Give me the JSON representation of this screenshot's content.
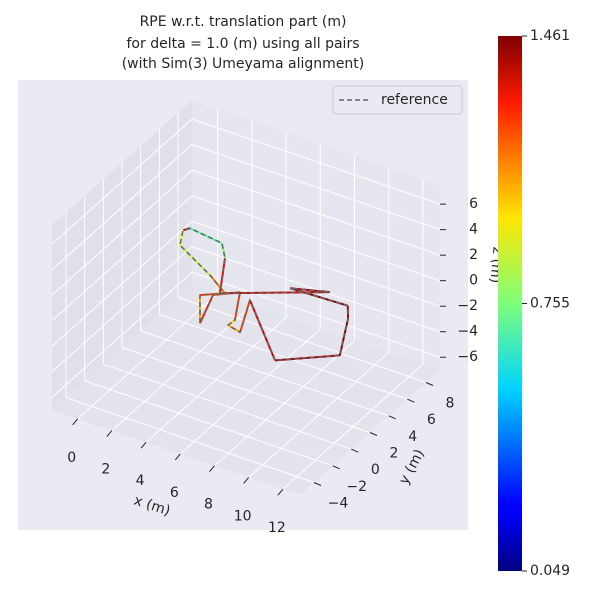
{
  "chart_data": {
    "type": "line3d",
    "title": [
      "RPE w.r.t. translation part (m)",
      "for delta = 1.0 (m) using all pairs",
      "(with Sim(3) Umeyama alignment)"
    ],
    "xlabel": "x (m)",
    "ylabel": "y (m)",
    "zlabel": "z (m)",
    "xlim": [
      -1.5,
      13
    ],
    "ylim": [
      -5.5,
      9.5
    ],
    "zlim": [
      -7,
      7.5
    ],
    "xticks": [
      0,
      2,
      4,
      6,
      8,
      10,
      12
    ],
    "yticks": [
      {
        "value": -4,
        "label": "−4"
      },
      {
        "value": -2,
        "label": "−2"
      },
      0,
      2,
      4,
      6,
      8
    ],
    "zticks": [
      {
        "value": -6,
        "label": "−6"
      },
      {
        "value": -4,
        "label": "−4"
      },
      {
        "value": -2,
        "label": "−2"
      },
      0,
      2,
      4,
      6
    ],
    "grid": true,
    "legend_position": "upper right",
    "series": [
      {
        "name": "reference",
        "color": "#666666",
        "x": [
          1.16,
          0.96,
          1.54,
          4.23,
          5.71,
          4.75,
          6.08,
          5.3,
          6.3,
          7.41,
          7.36,
          8.2,
          7.1,
          9.2,
          11.7,
          10.3,
          9.68,
          8.23,
          10.1,
          5.5,
          4.06,
          3.22,
          1.16
        ],
        "y": [
          4.4,
          4.03,
          2.64,
          0.93,
          -0.19,
          -1.1,
          -3.53,
          -0.71,
          0.35,
          -2.23,
          -2.87,
          -3.12,
          -0.05,
          -1.21,
          1.15,
          4.6,
          5.7,
          2.18,
          3.02,
          -0.34,
          2.85,
          4.06,
          4.4
        ],
        "z": [
          2,
          2,
          2,
          2,
          2,
          2,
          2,
          2,
          2,
          2,
          2,
          2,
          2,
          -1,
          -1,
          -1,
          -1,
          2,
          2,
          2,
          2,
          2,
          2
        ],
        "errors": [
          1.4,
          0.9,
          0.85,
          1.1,
          1.2,
          1.05,
          1.25,
          1.15,
          1.2,
          1.0,
          1.05,
          1.2,
          1.35,
          1.4,
          1.45,
          1.4,
          1.45,
          1.4,
          1.35,
          1.3,
          0.75,
          0.7,
          1.4
        ]
      }
    ],
    "colorbar": {
      "colormap": "jet",
      "lim": [
        0.049,
        1.461
      ],
      "ticks": [
        0.049,
        0.755,
        1.461
      ]
    }
  }
}
